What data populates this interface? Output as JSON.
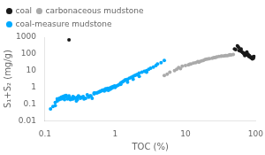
{
  "chart_data": {
    "type": "scatter",
    "xlabel": "TOC (%)",
    "ylabel": "S₁+S₂ (mg/g)",
    "log": true,
    "grid": false,
    "legend": "upper left",
    "marker": "circle",
    "xlim": [
      0.1,
      100
    ],
    "ylim": [
      0.01,
      1000
    ],
    "xticks": [
      0.1,
      1,
      10,
      100
    ],
    "yticks": [
      0.01,
      0.1,
      1,
      10,
      100,
      1000
    ],
    "series": [
      {
        "name": "coal",
        "color": "#1a1a1a",
        "x": [
          0.22,
          50,
          52,
          55,
          57,
          58,
          60,
          62,
          63,
          65,
          67,
          68,
          70,
          71,
          72,
          73,
          74,
          75,
          76,
          77,
          78,
          79,
          80,
          81,
          82,
          83,
          85,
          87,
          88,
          90,
          91,
          92,
          93,
          95
        ],
        "values": [
          700,
          200,
          180,
          300,
          250,
          160,
          150,
          200,
          140,
          120,
          115,
          100,
          80,
          90,
          90,
          110,
          105,
          130,
          95,
          85,
          95,
          78,
          70,
          80,
          75,
          68,
          60,
          58,
          55,
          50,
          65,
          60,
          55,
          70
        ]
      },
      {
        "name": "carbonaceous mudstone",
        "color": "#aaaaaa",
        "x": [
          5.0,
          5.5,
          6.0,
          7.0,
          7.5,
          8.0,
          9.0,
          10.0,
          11.0,
          12.0,
          13.0,
          14.0,
          15.0,
          16.0,
          17.0,
          18.0,
          19.0,
          20.0,
          22.0,
          24.0,
          25.0,
          27.0,
          28.0,
          30.0,
          32.0,
          35.0,
          38.0,
          40.0,
          42.0,
          45.0,
          48.0,
          8.5,
          11.5,
          15.5,
          21.0,
          26.0,
          33.0,
          37.0,
          43.0
        ],
        "values": [
          5.0,
          6.0,
          8.0,
          10.0,
          12.0,
          15.0,
          18.0,
          20.0,
          22.0,
          25.0,
          28.0,
          30.0,
          35.0,
          35.0,
          38.0,
          40.0,
          45.0,
          48.0,
          52.0,
          55.0,
          58.0,
          62.0,
          65.0,
          70.0,
          72.0,
          75.0,
          78.0,
          80.0,
          85.0,
          88.0,
          92.0,
          13.0,
          24.0,
          32.0,
          50.0,
          60.0,
          74.0,
          80.0,
          90.0
        ]
      },
      {
        "name": "coal-measure mudstone",
        "color": "#00aaff",
        "x": [
          0.12,
          0.13,
          0.14,
          0.14,
          0.15,
          0.15,
          0.16,
          0.16,
          0.17,
          0.17,
          0.18,
          0.18,
          0.19,
          0.19,
          0.2,
          0.2,
          0.21,
          0.22,
          0.22,
          0.23,
          0.24,
          0.25,
          0.25,
          0.26,
          0.27,
          0.28,
          0.29,
          0.3,
          0.3,
          0.32,
          0.33,
          0.35,
          0.36,
          0.38,
          0.4,
          0.42,
          0.44,
          0.45,
          0.47,
          0.5,
          0.52,
          0.55,
          0.57,
          0.6,
          0.63,
          0.65,
          0.68,
          0.7,
          0.73,
          0.75,
          0.78,
          0.8,
          0.83,
          0.85,
          0.88,
          0.9,
          0.93,
          0.95,
          0.98,
          1.0,
          1.05,
          1.1,
          1.15,
          1.2,
          1.25,
          1.3,
          1.35,
          1.4,
          1.5,
          1.6,
          1.7,
          1.8,
          1.9,
          2.0,
          2.1,
          2.2,
          2.4,
          2.6,
          2.8,
          3.0,
          3.2,
          3.5,
          3.8,
          4.0,
          4.5,
          5.0,
          0.15,
          0.19,
          0.24,
          0.29,
          0.35,
          0.42,
          0.5,
          0.6,
          0.72,
          0.85,
          1.0,
          1.2,
          1.5,
          1.8,
          2.2,
          2.8
        ],
        "values": [
          0.05,
          0.07,
          0.08,
          0.12,
          0.15,
          0.2,
          0.18,
          0.22,
          0.25,
          0.2,
          0.28,
          0.22,
          0.3,
          0.25,
          0.28,
          0.32,
          0.2,
          0.25,
          0.3,
          0.18,
          0.22,
          0.2,
          0.28,
          0.25,
          0.22,
          0.15,
          0.25,
          0.3,
          0.28,
          0.22,
          0.25,
          0.28,
          0.2,
          0.22,
          0.35,
          0.25,
          0.3,
          0.3,
          0.22,
          0.4,
          0.45,
          0.45,
          0.5,
          0.55,
          0.6,
          0.65,
          0.7,
          0.6,
          0.8,
          0.7,
          0.85,
          0.65,
          0.9,
          0.75,
          1.0,
          0.9,
          1.1,
          1.0,
          1.2,
          1.0,
          1.2,
          1.3,
          1.5,
          1.8,
          2.0,
          2.2,
          2.5,
          2.8,
          3.0,
          3.5,
          4.0,
          4.5,
          5.0,
          5.5,
          6.0,
          7.0,
          8.0,
          9.0,
          10.0,
          12.0,
          14.0,
          16.0,
          20.0,
          25.0,
          30.0,
          40.0,
          0.2,
          0.18,
          0.2,
          0.18,
          0.25,
          0.28,
          0.45,
          0.55,
          0.72,
          0.8,
          1.0,
          1.5,
          2.0,
          3.0,
          4.5,
          8.0
        ]
      }
    ]
  }
}
